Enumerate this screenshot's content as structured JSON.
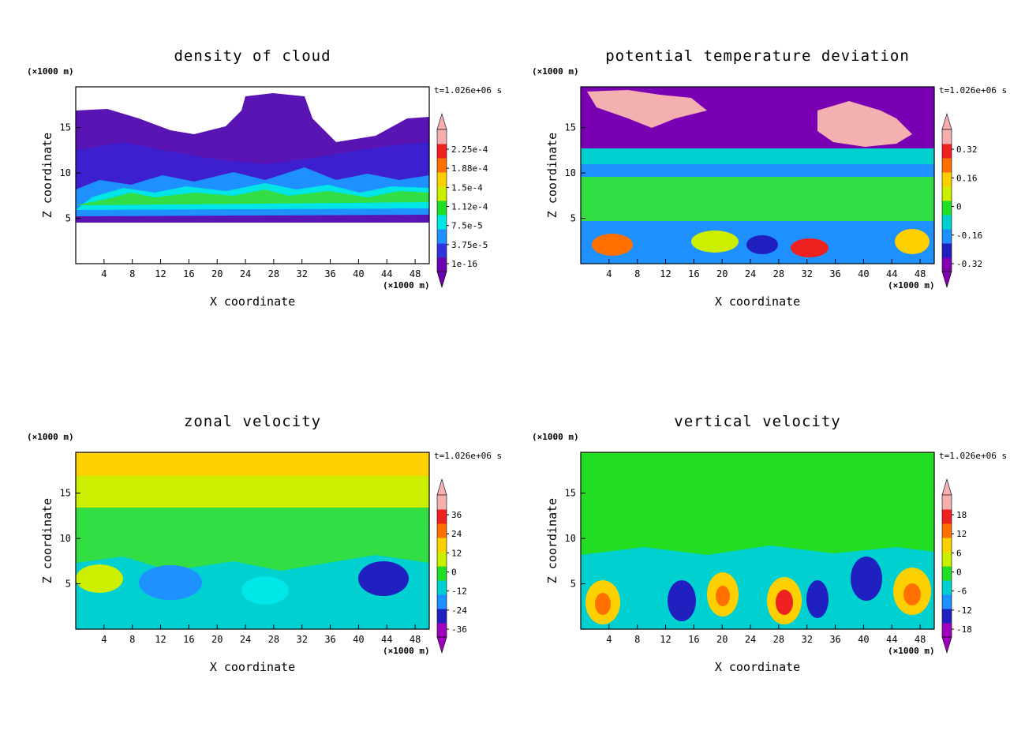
{
  "panels": [
    {
      "title": "density of cloud",
      "z_unit": "(×1000 m)",
      "x_unit": "(×1000 m)",
      "time_label": "t=1.026e+06 s",
      "ylabel": "Z coordinate",
      "xlabel": "X coordinate",
      "colorbar_labels": [
        "2.25e-4",
        "1.88e-4",
        "1.5e-4",
        "1.12e-4",
        "7.5e-5",
        "3.75e-5",
        "1e-16"
      ]
    },
    {
      "title": "potential temperature deviation",
      "z_unit": "(×1000 m)",
      "x_unit": "(×1000 m)",
      "time_label": "t=1.026e+06 s",
      "ylabel": "Z coordinate",
      "xlabel": "X coordinate",
      "colorbar_labels": [
        "0.32",
        "0.16",
        "0",
        "-0.16",
        "-0.32"
      ]
    },
    {
      "title": "zonal velocity",
      "z_unit": "(×1000 m)",
      "x_unit": "(×1000 m)",
      "time_label": "t=1.026e+06 s",
      "ylabel": "Z coordinate",
      "xlabel": "X coordinate",
      "colorbar_labels": [
        "36",
        "24",
        "12",
        "0",
        "-12",
        "-24",
        "-36"
      ]
    },
    {
      "title": "vertical velocity",
      "z_unit": "(×1000 m)",
      "x_unit": "(×1000 m)",
      "time_label": "t=1.026e+06 s",
      "ylabel": "Z coordinate",
      "xlabel": "X coordinate",
      "colorbar_labels": [
        "18",
        "12",
        "6",
        "0",
        "-6",
        "-12",
        "-18"
      ]
    }
  ],
  "chart_data": [
    {
      "type": "heatmap",
      "title": "density of cloud",
      "xlabel": "X coordinate",
      "ylabel": "Z coordinate",
      "x_ticks": [
        4,
        8,
        12,
        16,
        20,
        24,
        28,
        32,
        36,
        40,
        44,
        48
      ],
      "y_ticks": [
        5,
        10,
        15
      ],
      "xlim": [
        0,
        50
      ],
      "ylim": [
        0,
        19.5
      ],
      "colorbar_levels": [
        1e-16,
        3.75e-05,
        7.5e-05,
        0.000112,
        0.00015,
        0.000188,
        0.000225
      ],
      "colors": [
        "#6a00b0",
        "#3333dd",
        "#1e90ff",
        "#00e5e5",
        "#22dd22",
        "#ccee00",
        "#ffd000",
        "#ff7000",
        "#ee2020",
        "#f4b0b0"
      ]
    },
    {
      "type": "heatmap",
      "title": "potential temperature deviation",
      "xlabel": "X coordinate",
      "ylabel": "Z coordinate",
      "x_ticks": [
        4,
        8,
        12,
        16,
        20,
        24,
        28,
        32,
        36,
        40,
        44,
        48
      ],
      "y_ticks": [
        5,
        10,
        15
      ],
      "xlim": [
        0,
        50
      ],
      "ylim": [
        0,
        19.5
      ],
      "colorbar_levels": [
        -0.32,
        -0.16,
        0,
        0.16,
        0.32
      ],
      "colors": [
        "#8000b0",
        "#2020c0",
        "#1e90ff",
        "#00d0d0",
        "#22dd22",
        "#ccee00",
        "#ffd000",
        "#ff7000",
        "#ee2020",
        "#f4b0b0"
      ]
    },
    {
      "type": "heatmap",
      "title": "zonal velocity",
      "xlabel": "X coordinate",
      "ylabel": "Z coordinate",
      "x_ticks": [
        4,
        8,
        12,
        16,
        20,
        24,
        28,
        32,
        36,
        40,
        44,
        48
      ],
      "y_ticks": [
        5,
        10,
        15
      ],
      "xlim": [
        0,
        50
      ],
      "ylim": [
        0,
        19.5
      ],
      "colorbar_levels": [
        -36,
        -24,
        -12,
        0,
        12,
        24,
        36
      ],
      "colors": [
        "#a000c0",
        "#2020c0",
        "#1e90ff",
        "#00d0d0",
        "#22dd22",
        "#ccee00",
        "#ffd000",
        "#ff7000",
        "#ee2020",
        "#f4b0b0"
      ]
    },
    {
      "type": "heatmap",
      "title": "vertical velocity",
      "xlabel": "X coordinate",
      "ylabel": "Z coordinate",
      "x_ticks": [
        4,
        8,
        12,
        16,
        20,
        24,
        28,
        32,
        36,
        40,
        44,
        48
      ],
      "y_ticks": [
        5,
        10,
        15
      ],
      "xlim": [
        0,
        50
      ],
      "ylim": [
        0,
        19.5
      ],
      "colorbar_levels": [
        -18,
        -12,
        -6,
        0,
        6,
        12,
        18
      ],
      "colors": [
        "#a000c0",
        "#2020c0",
        "#1e90ff",
        "#00d0d0",
        "#22dd22",
        "#ccee00",
        "#ffd000",
        "#ff7000",
        "#ee2020",
        "#f4b0b0"
      ]
    }
  ]
}
